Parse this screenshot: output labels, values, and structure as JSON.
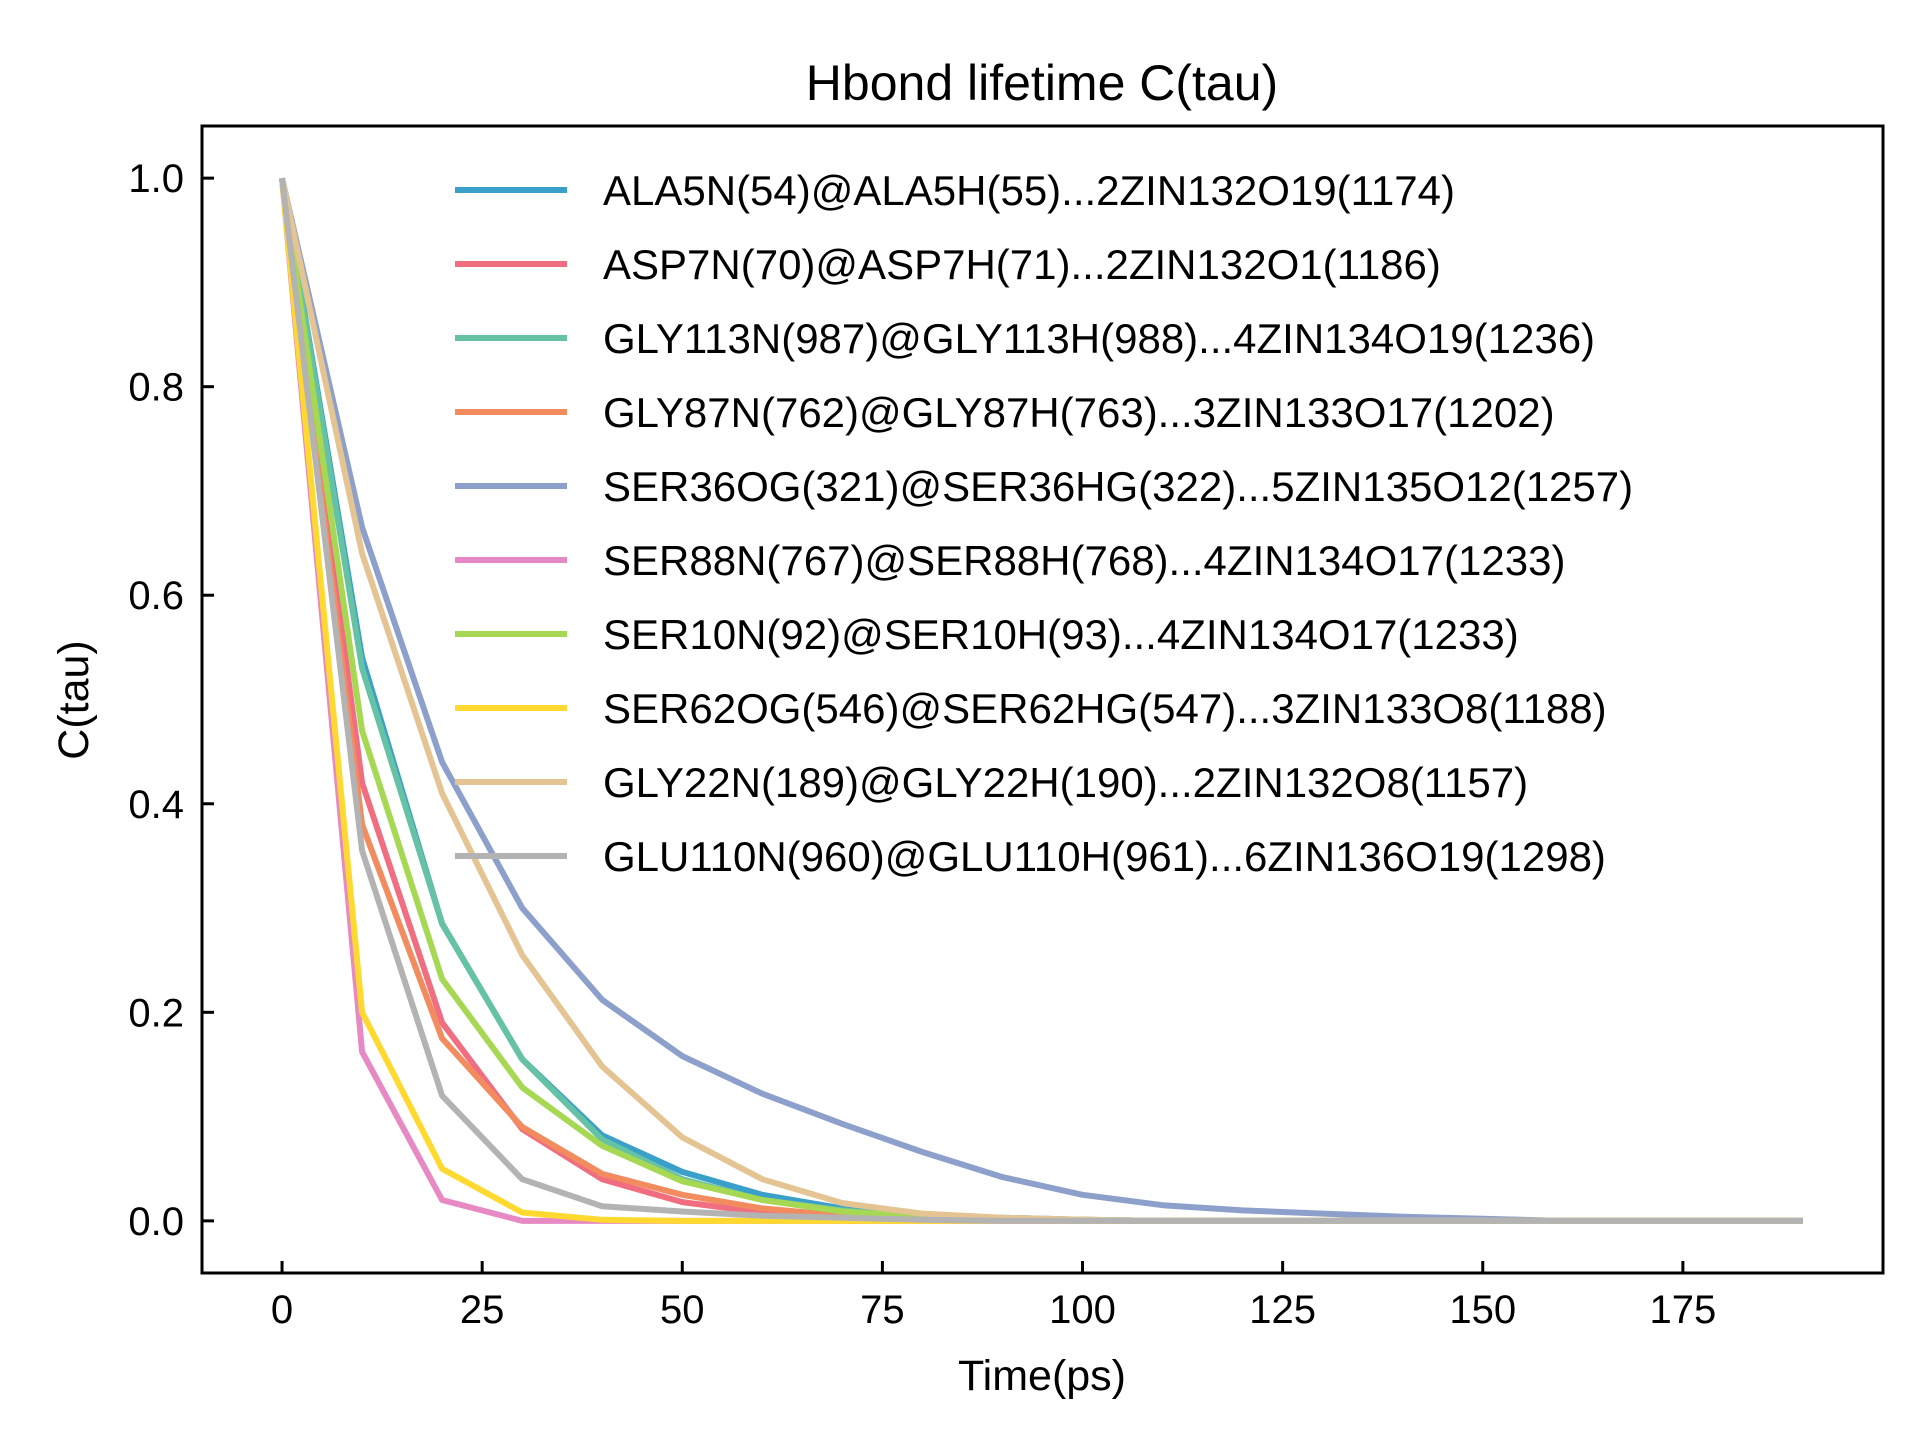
{
  "chart_data": {
    "type": "line",
    "title": "Hbond lifetime C(tau)",
    "xlabel": "Time(ps)",
    "ylabel": "C(tau)",
    "xlim": [
      -10,
      200
    ],
    "ylim": [
      -0.05,
      1.05
    ],
    "xticks": [
      0,
      25,
      50,
      75,
      100,
      125,
      150,
      175
    ],
    "yticks": [
      0.0,
      0.2,
      0.4,
      0.6,
      0.8,
      1.0
    ],
    "xtick_labels": [
      "0",
      "25",
      "50",
      "75",
      "100",
      "125",
      "150",
      "175"
    ],
    "ytick_labels": [
      "0.0",
      "0.2",
      "0.4",
      "0.6",
      "0.8",
      "1.0"
    ],
    "grid": false,
    "legend_position": "top-right",
    "x": [
      0,
      10,
      20,
      30,
      40,
      50,
      60,
      70,
      80,
      90,
      100,
      110,
      120,
      130,
      140,
      150,
      160,
      170,
      180,
      190
    ],
    "series": [
      {
        "name": "ALA5N(54)@ALA5H(55)...2ZIN132O19(1174)",
        "color": "#3a9fc9",
        "values": [
          1.0,
          0.54,
          0.285,
          0.155,
          0.082,
          0.047,
          0.025,
          0.012,
          0.005,
          0.003,
          0.001,
          0.0,
          0.0,
          0.0,
          0.0,
          0.0,
          0.0,
          0.0,
          0.0,
          0.0
        ]
      },
      {
        "name": "ASP7N(70)@ASP7H(71)...2ZIN132O1(1186)",
        "color": "#f06e7f",
        "values": [
          1.0,
          0.42,
          0.19,
          0.088,
          0.04,
          0.018,
          0.008,
          0.003,
          0.001,
          0.0,
          0.0,
          0.0,
          0.0,
          0.0,
          0.0,
          0.0,
          0.0,
          0.0,
          0.0,
          0.0
        ]
      },
      {
        "name": "GLY113N(987)@GLY113H(988)...4ZIN134O19(1236)",
        "color": "#66c2a5",
        "values": [
          1.0,
          0.53,
          0.285,
          0.155,
          0.078,
          0.04,
          0.02,
          0.01,
          0.004,
          0.002,
          0.001,
          0.0,
          0.0,
          0.0,
          0.0,
          0.0,
          0.0,
          0.0,
          0.0,
          0.0
        ]
      },
      {
        "name": "GLY87N(762)@GLY87H(763)...3ZIN133O17(1202)",
        "color": "#f28c5f",
        "values": [
          1.0,
          0.38,
          0.175,
          0.09,
          0.045,
          0.025,
          0.012,
          0.005,
          0.002,
          0.001,
          0.0,
          0.0,
          0.0,
          0.0,
          0.0,
          0.0,
          0.0,
          0.0,
          0.0,
          0.0
        ]
      },
      {
        "name": "SER36OG(321)@SER36HG(322)...5ZIN135O12(1257)",
        "color": "#8da0cb",
        "values": [
          1.0,
          0.665,
          0.44,
          0.3,
          0.212,
          0.158,
          0.122,
          0.093,
          0.066,
          0.042,
          0.025,
          0.015,
          0.01,
          0.007,
          0.004,
          0.002,
          0.0,
          0.0,
          0.0,
          0.0
        ]
      },
      {
        "name": "SER88N(767)@SER88H(768)...4ZIN134O17(1233)",
        "color": "#e78ac3",
        "values": [
          1.0,
          0.162,
          0.02,
          0.0,
          0.0,
          0.0,
          0.0,
          0.0,
          0.0,
          0.0,
          0.0,
          0.0,
          0.0,
          0.0,
          0.0,
          0.0,
          0.0,
          0.0,
          0.0,
          0.0
        ]
      },
      {
        "name": "SER10N(92)@SER10H(93)...4ZIN134O17(1233)",
        "color": "#a6d854",
        "values": [
          1.0,
          0.47,
          0.232,
          0.128,
          0.072,
          0.038,
          0.02,
          0.009,
          0.004,
          0.002,
          0.001,
          0.0,
          0.0,
          0.0,
          0.0,
          0.0,
          0.0,
          0.0,
          0.0,
          0.0
        ]
      },
      {
        "name": "SER62OG(546)@SER62HG(547)...3ZIN133O8(1188)",
        "color": "#ffd92f",
        "values": [
          1.0,
          0.2,
          0.05,
          0.008,
          0.001,
          0.0,
          0.0,
          0.0,
          0.0,
          0.0,
          0.0,
          0.0,
          0.0,
          0.0,
          0.0,
          0.0,
          0.0,
          0.0,
          0.0,
          0.0
        ]
      },
      {
        "name": "GLY22N(189)@GLY22H(190)...2ZIN132O8(1157)",
        "color": "#e5c494",
        "values": [
          1.0,
          0.64,
          0.41,
          0.255,
          0.148,
          0.08,
          0.04,
          0.017,
          0.007,
          0.003,
          0.001,
          0.0,
          0.0,
          0.0,
          0.0,
          0.0,
          0.0,
          0.0,
          0.0,
          0.0
        ]
      },
      {
        "name": "GLU110N(960)@GLU110H(961)...6ZIN136O19(1298)",
        "color": "#b3b3b3",
        "values": [
          1.0,
          0.355,
          0.12,
          0.04,
          0.014,
          0.009,
          0.005,
          0.003,
          0.001,
          0.0,
          0.0,
          0.0,
          0.0,
          0.0,
          0.0,
          0.0,
          0.0,
          0.0,
          0.0,
          0.0
        ]
      }
    ]
  }
}
